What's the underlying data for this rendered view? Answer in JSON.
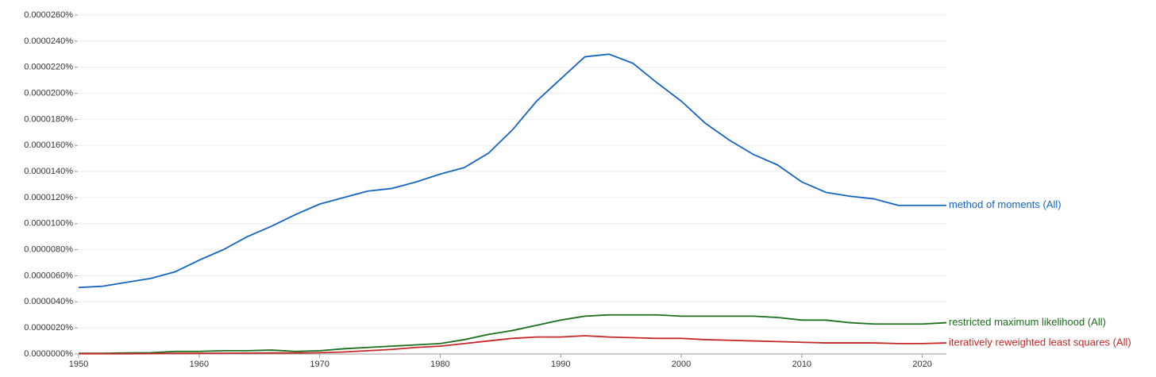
{
  "chart_data": {
    "type": "line",
    "x": [
      1950,
      1952,
      1954,
      1956,
      1958,
      1960,
      1962,
      1964,
      1966,
      1968,
      1970,
      1972,
      1974,
      1976,
      1978,
      1980,
      1982,
      1984,
      1986,
      1988,
      1990,
      1992,
      1994,
      1996,
      1998,
      2000,
      2002,
      2004,
      2006,
      2008,
      2010,
      2012,
      2014,
      2016,
      2018,
      2020,
      2022
    ],
    "series": [
      {
        "name": "method of moments (All)",
        "color": "#1565c0",
        "values": [
          5.1e-06,
          5.2e-06,
          5.5e-06,
          5.8e-06,
          6.3e-06,
          7.2e-06,
          8e-06,
          9e-06,
          9.8e-06,
          1.07e-05,
          1.15e-05,
          1.2e-05,
          1.25e-05,
          1.27e-05,
          1.32e-05,
          1.38e-05,
          1.43e-05,
          1.54e-05,
          1.72e-05,
          1.94e-05,
          2.11e-05,
          2.28e-05,
          2.3e-05,
          2.23e-05,
          2.08e-05,
          1.94e-05,
          1.77e-05,
          1.64e-05,
          1.53e-05,
          1.45e-05,
          1.32e-05,
          1.24e-05,
          1.21e-05,
          1.19e-05,
          1.14e-05,
          1.14e-05,
          1.14e-05
        ]
      },
      {
        "name": "restricted maximum likelihood (All)",
        "color": "#1b6e1b",
        "values": [
          5e-08,
          5e-08,
          8e-08,
          1e-07,
          2e-07,
          2e-07,
          2.5e-07,
          2.5e-07,
          3e-07,
          2e-07,
          2.5e-07,
          4e-07,
          5e-07,
          6e-07,
          7e-07,
          8e-07,
          1.1e-06,
          1.5e-06,
          1.8e-06,
          2.2e-06,
          2.6e-06,
          2.9e-06,
          3e-06,
          3e-06,
          3e-06,
          2.9e-06,
          2.9e-06,
          2.9e-06,
          2.9e-06,
          2.8e-06,
          2.6e-06,
          2.6e-06,
          2.4e-06,
          2.3e-06,
          2.3e-06,
          2.3e-06,
          2.4e-06
        ]
      },
      {
        "name": "iteratively reweighted least squares (All)",
        "color": "#c62828",
        "values": [
          2e-08,
          2e-08,
          2e-08,
          3e-08,
          5e-08,
          5e-08,
          6e-08,
          7e-08,
          8e-08,
          8e-08,
          1e-07,
          1.5e-07,
          2.5e-07,
          3.5e-07,
          5e-07,
          6e-07,
          8e-07,
          1e-06,
          1.2e-06,
          1.3e-06,
          1.3e-06,
          1.4e-06,
          1.3e-06,
          1.25e-06,
          1.2e-06,
          1.2e-06,
          1.1e-06,
          1.05e-06,
          1e-06,
          9.5e-07,
          9e-07,
          8.5e-07,
          8.5e-07,
          8.5e-07,
          8e-07,
          8e-07,
          8.5e-07
        ]
      }
    ],
    "xlim": [
      1950,
      2022
    ],
    "xticks": [
      1950,
      1960,
      1970,
      1980,
      1990,
      2000,
      2010,
      2020
    ],
    "ylim": [
      0,
      2.6e-05
    ],
    "yticks": [
      {
        "value": 0,
        "label": "0.0000000%"
      },
      {
        "value": 2e-06,
        "label": "0.0000020%"
      },
      {
        "value": 4e-06,
        "label": "0.0000040%"
      },
      {
        "value": 6e-06,
        "label": "0.0000060%"
      },
      {
        "value": 8e-06,
        "label": "0.0000080%"
      },
      {
        "value": 1e-05,
        "label": "0.0000100%"
      },
      {
        "value": 1.2e-05,
        "label": "0.0000120%"
      },
      {
        "value": 1.4e-05,
        "label": "0.0000140%"
      },
      {
        "value": 1.6e-05,
        "label": "0.0000160%"
      },
      {
        "value": 1.8e-05,
        "label": "0.0000180%"
      },
      {
        "value": 2e-05,
        "label": "0.0000200%"
      },
      {
        "value": 2.2e-05,
        "label": "0.0000220%"
      },
      {
        "value": 2.4e-05,
        "label": "0.0000240%"
      },
      {
        "value": 2.6e-05,
        "label": "0.0000260%"
      }
    ],
    "grid": true
  }
}
